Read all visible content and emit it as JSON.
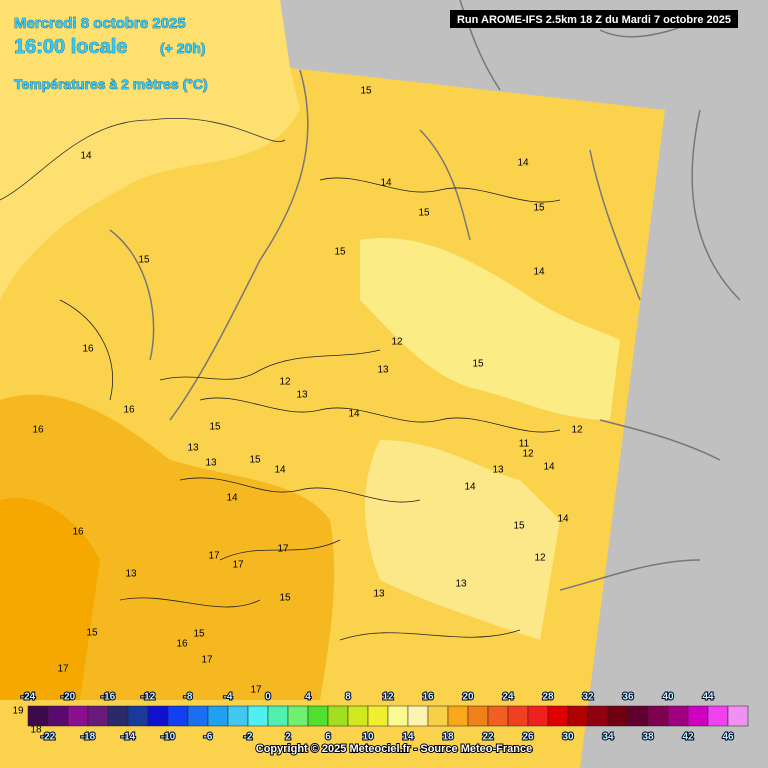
{
  "header": {
    "date": "Mercredi 8 octobre 2025",
    "time": "16:00 locale",
    "lead": "(+ 20h)",
    "field": "Températures à 2 mètres (°C)",
    "run": "Run AROME-IFS 2.5km 18 Z du Mardi 7 octobre 2025"
  },
  "legend": {
    "ticks": [
      -24,
      -22,
      -20,
      -18,
      -16,
      -14,
      -12,
      -10,
      -8,
      -6,
      -4,
      -2,
      0,
      2,
      4,
      6,
      8,
      10,
      12,
      14,
      16,
      18,
      20,
      22,
      24,
      26,
      28,
      30,
      32,
      34,
      36,
      38,
      40,
      42,
      44,
      46
    ],
    "colors": [
      "#3c0a4a",
      "#5a0a6e",
      "#8a1090",
      "#6a1a7a",
      "#2a2a6a",
      "#1a3a9a",
      "#1010d0",
      "#1040f0",
      "#1a70f0",
      "#20a0f0",
      "#40c8f0",
      "#50f0f0",
      "#50f0b0",
      "#70f070",
      "#50e030",
      "#a0e020",
      "#d0e820",
      "#f0f030",
      "#fafa90",
      "#fcf4b0",
      "#f8d048",
      "#f8a818",
      "#f08018",
      "#f06020",
      "#f04020",
      "#f02020",
      "#e00000",
      "#b00000",
      "#900010",
      "#700010",
      "#600030",
      "#800050",
      "#a00080",
      "#d000c0",
      "#f040f0",
      "#f090f0"
    ]
  },
  "contour_labels": [
    14,
    15,
    14,
    15,
    14,
    15,
    15,
    15,
    14,
    16,
    12,
    13,
    15,
    12,
    13,
    16,
    16,
    14,
    15,
    13,
    13,
    15,
    14,
    11,
    12,
    12,
    13,
    14,
    14,
    14,
    16,
    15,
    14,
    17,
    17,
    17,
    13,
    12,
    13,
    13,
    15,
    15,
    15,
    16,
    17,
    17,
    17,
    19,
    18
  ],
  "copyright": "Copyright © 2025 Meteociel.fr - Source Meteo-France"
}
